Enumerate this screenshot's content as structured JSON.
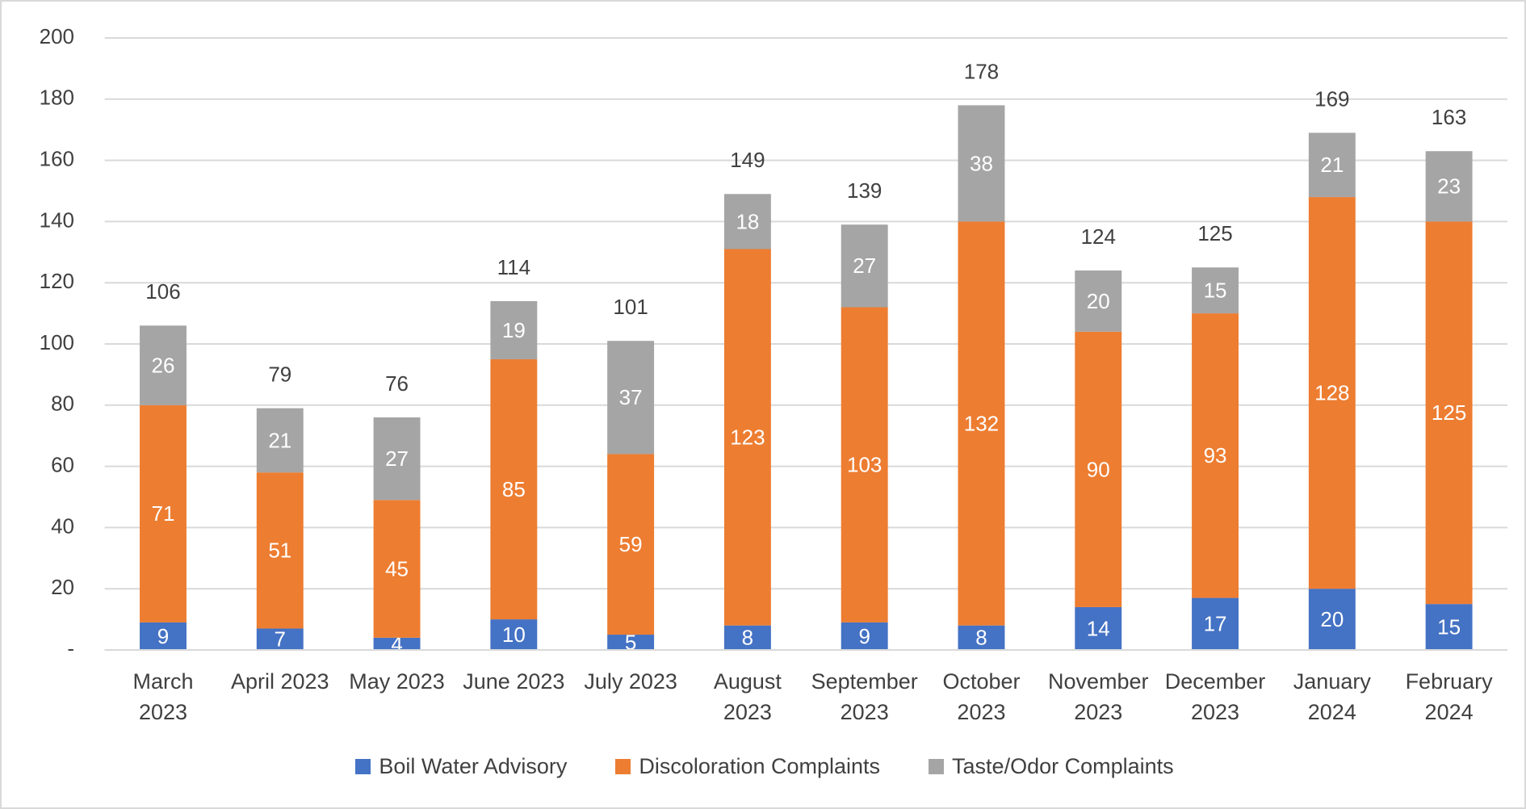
{
  "chart_data": {
    "type": "stacked_bar",
    "categories": [
      "March 2023",
      "April 2023",
      "May 2023",
      "June 2023",
      "July 2023",
      "August 2023",
      "September 2023",
      "October 2023",
      "November 2023",
      "December 2023",
      "January 2024",
      "February 2024"
    ],
    "series": [
      {
        "name": "Boil Water Advisory",
        "color": "#4472c4",
        "values": [
          9,
          7,
          4,
          10,
          5,
          8,
          9,
          8,
          14,
          17,
          20,
          15
        ]
      },
      {
        "name": "Discoloration Complaints",
        "color": "#ed7d31",
        "values": [
          71,
          51,
          45,
          85,
          59,
          123,
          103,
          132,
          90,
          93,
          128,
          125
        ]
      },
      {
        "name": "Taste/Odor Complaints",
        "color": "#a5a5a5",
        "values": [
          26,
          21,
          27,
          19,
          37,
          18,
          27,
          38,
          20,
          15,
          21,
          23
        ]
      }
    ],
    "total_labels": [
      106,
      79,
      76,
      114,
      101,
      149,
      139,
      178,
      124,
      125,
      169,
      163
    ],
    "ylim": [
      0,
      200
    ],
    "yticks": [
      {
        "value": 0,
        "label": "-"
      },
      20,
      40,
      60,
      80,
      100,
      120,
      140,
      160,
      180,
      200
    ],
    "grid": true,
    "legend": "bottom"
  }
}
